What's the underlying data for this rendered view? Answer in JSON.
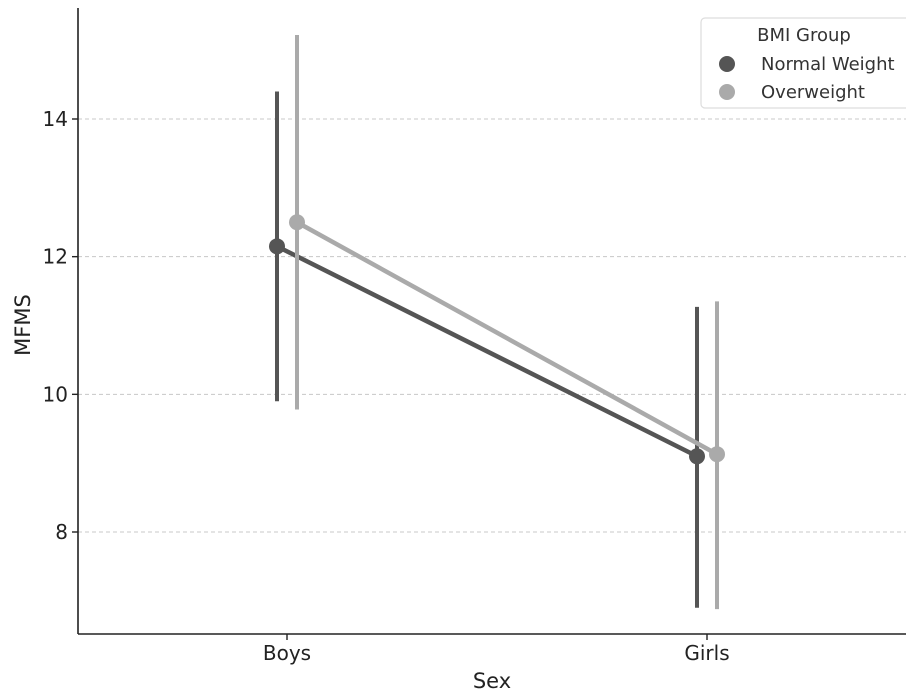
{
  "chart_data": {
    "type": "line",
    "xlabel": "Sex",
    "ylabel": "MFMS",
    "categories": [
      "Boys",
      "Girls"
    ],
    "ylim": [
      6.5,
      15.6
    ],
    "yticks": [
      "8",
      "10",
      "12",
      "14"
    ],
    "grid": "horizontal dashed",
    "legend": {
      "title": "BMI Group",
      "placement": "top-right"
    },
    "series": [
      {
        "name": "Normal Weight",
        "color": "#555555",
        "values": [
          12.15,
          9.1
        ],
        "error_low": [
          9.9,
          6.9
        ],
        "error_high": [
          14.4,
          11.27
        ]
      },
      {
        "name": "Overweight",
        "color": "#aaaaaa",
        "values": [
          12.5,
          9.13
        ],
        "error_low": [
          9.78,
          6.88
        ],
        "error_high": [
          15.22,
          11.35
        ]
      }
    ]
  }
}
